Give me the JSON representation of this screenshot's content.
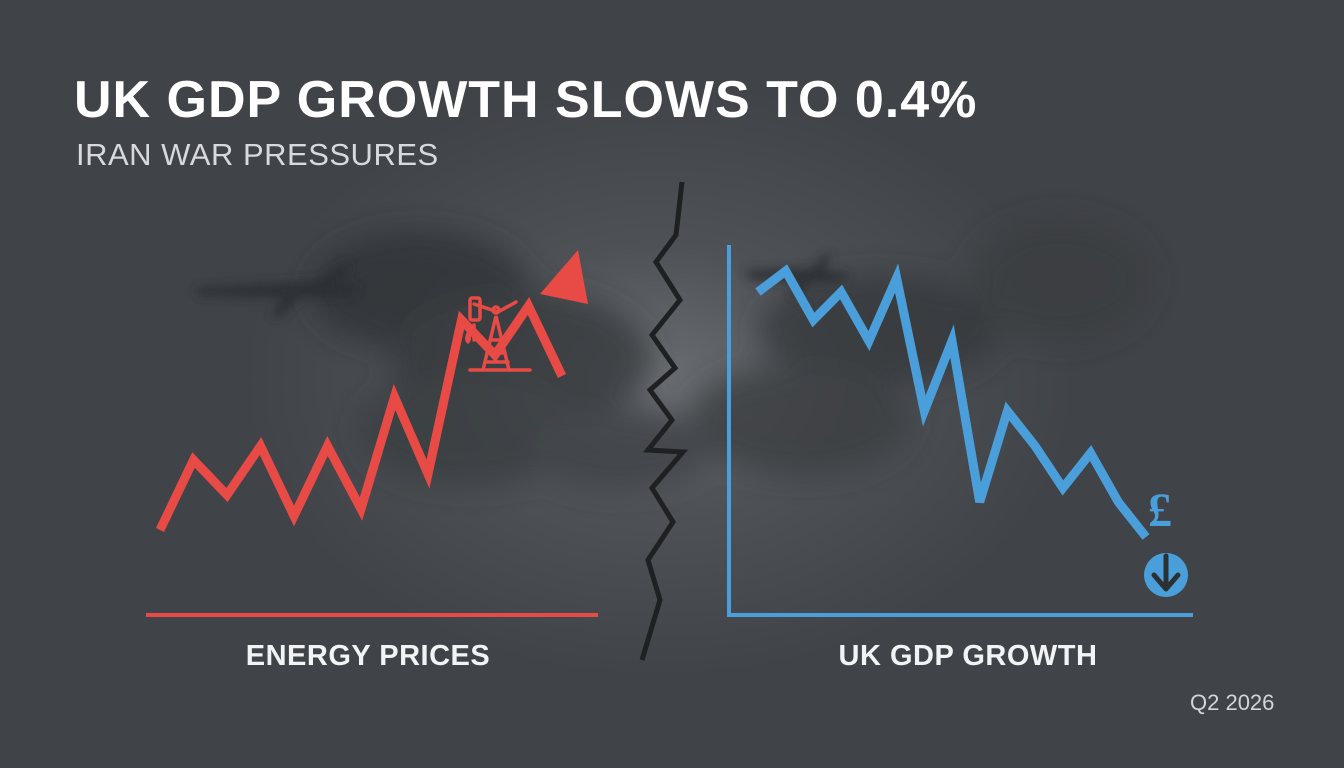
{
  "title": "UK GDP GROWTH SLOWS TO 0.4%",
  "subtitle": "IRAN WAR PRESSURES",
  "date_label": "Q2 2026",
  "colors": {
    "energy": "#e84a45",
    "gdp": "#4a9fdb",
    "background": "#45484c"
  },
  "icons": [
    "oil-pump-icon",
    "pound-sign-icon",
    "down-arrow-icon",
    "airplane-icon",
    "smoke-cloud-icon"
  ],
  "chart_data": [
    {
      "type": "line",
      "label": "ENERGY PRICES",
      "trend": "rising",
      "x": [
        0,
        1,
        2,
        3,
        4,
        5,
        6,
        7,
        8,
        9,
        10,
        11,
        12
      ],
      "values": [
        10,
        20,
        15,
        22,
        12,
        22,
        13,
        29,
        18,
        40,
        35,
        42,
        32
      ]
    },
    {
      "type": "line",
      "label": "UK GDP GROWTH",
      "trend": "falling",
      "x": [
        0,
        1,
        2,
        3,
        4,
        5,
        6,
        7,
        8,
        9,
        10,
        11,
        12,
        13,
        14
      ],
      "values": [
        44,
        47,
        40,
        44,
        37,
        46,
        27,
        37,
        14,
        27,
        22,
        16,
        21,
        14,
        9
      ]
    }
  ]
}
